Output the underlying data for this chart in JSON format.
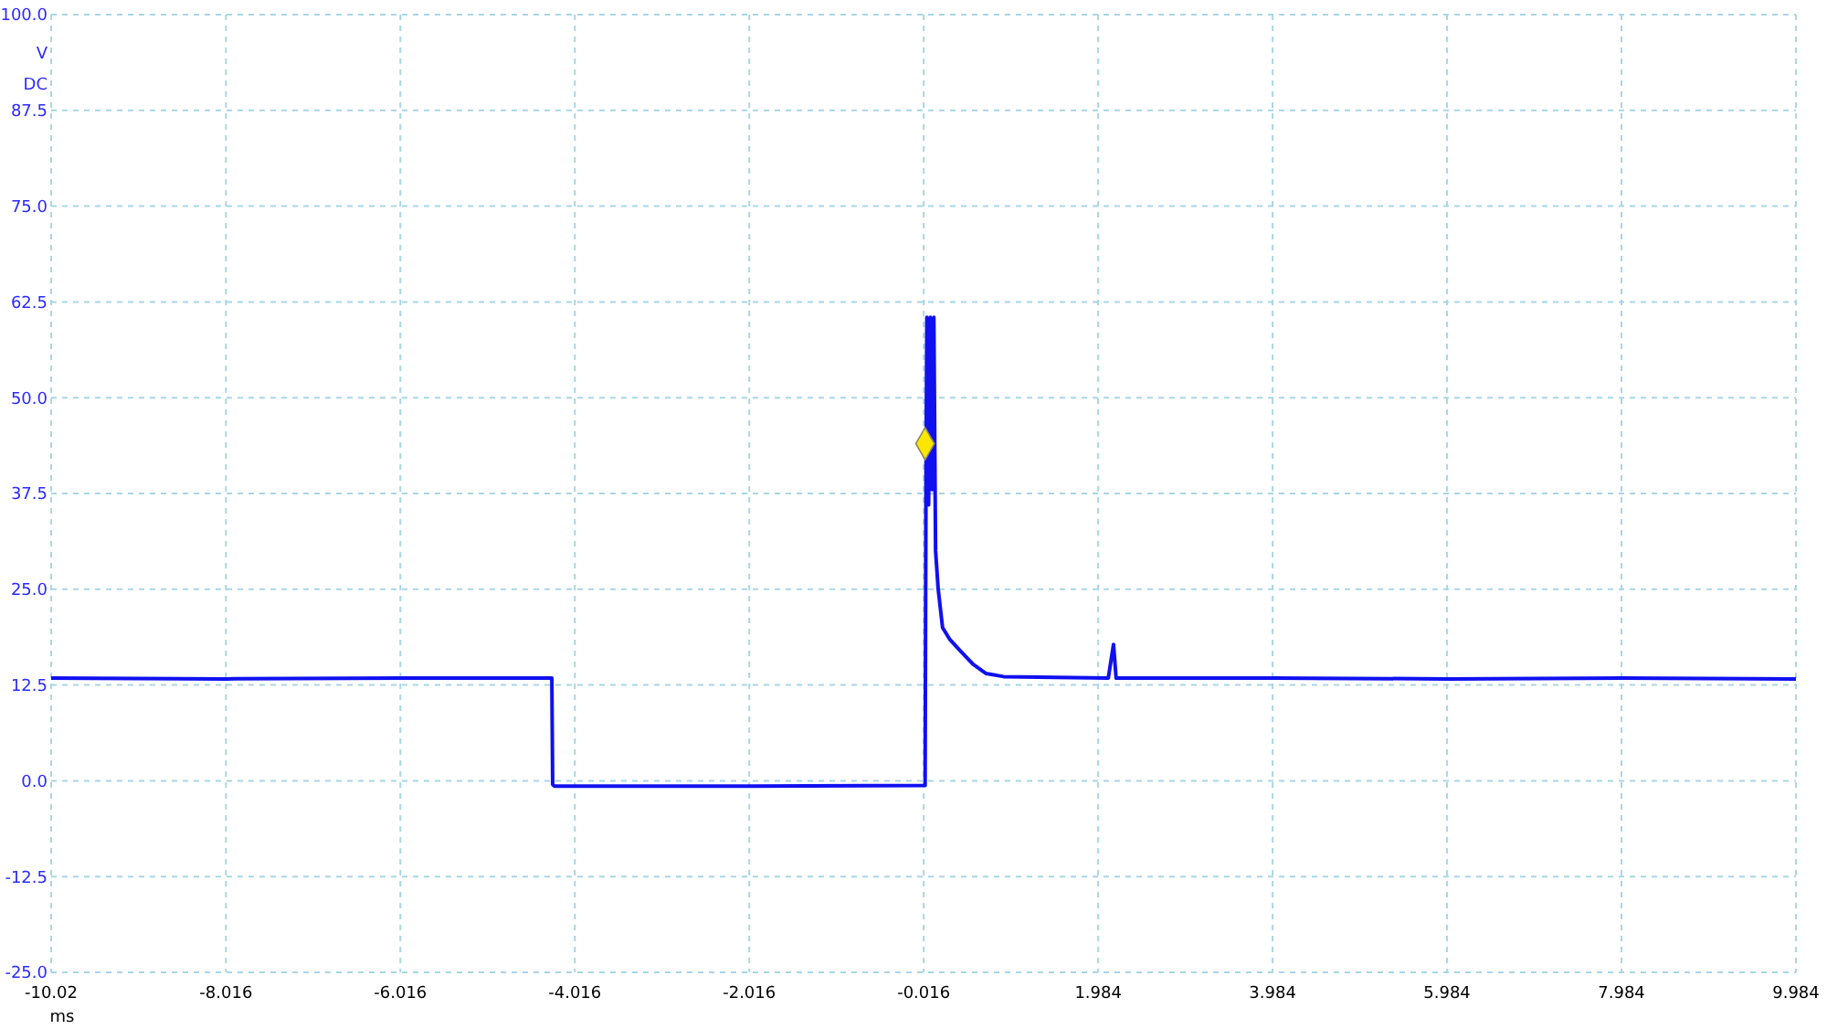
{
  "chart_data": {
    "type": "line",
    "xlabel": "ms",
    "ylabel": "V DC",
    "xlim": [
      -10.02,
      9.984
    ],
    "ylim": [
      -25,
      100
    ],
    "xticks": [
      -10.02,
      -8.016,
      -6.016,
      -4.016,
      -2.016,
      -0.016,
      1.984,
      3.984,
      5.984,
      7.984,
      9.984
    ],
    "yticks": [
      {
        "value": -25,
        "label": "-25.0"
      },
      {
        "value": -12.5,
        "label": "-12.5"
      },
      {
        "value": 0,
        "label": "0.0"
      },
      {
        "value": 12.5,
        "label": "12.5"
      },
      {
        "value": 25,
        "label": "25.0"
      },
      {
        "value": 37.5,
        "label": "37.5"
      },
      {
        "value": 50,
        "label": "50.0"
      },
      {
        "value": 62.5,
        "label": "62.5"
      },
      {
        "value": 75,
        "label": "75.0"
      },
      {
        "value": 87.5,
        "label": "87.5"
      },
      {
        "value": 100,
        "label": "100.0"
      }
    ],
    "grid": true,
    "line_style": "solid",
    "series": [
      {
        "color": "#1010f0",
        "x": [
          -10.02,
          -8,
          -6,
          -4.3,
          -4.28,
          -4.27,
          -4.25,
          -2,
          -0.02,
          0,
          0.01,
          0.02,
          0.04,
          0.06,
          0.08,
          0.1,
          0.12,
          0.15,
          0.2,
          0.28,
          0.4,
          0.55,
          0.7,
          0.9,
          2.1,
          2.16,
          2.19,
          4,
          6,
          8,
          9.984
        ],
        "values": [
          13.4,
          13.3,
          13.4,
          13.4,
          13.4,
          -0.5,
          -0.7,
          -0.7,
          -0.6,
          -0.6,
          40,
          60.5,
          36,
          60.5,
          38,
          60.5,
          30,
          25,
          20,
          18.5,
          17,
          15.2,
          14,
          13.6,
          13.4,
          17.8,
          13.4,
          13.4,
          13.3,
          13.4,
          13.3
        ]
      },
      {
        "type": "scatter",
        "color": "#ffe600",
        "marker": "diamond",
        "x": [
          0
        ],
        "values": [
          44
        ]
      }
    ]
  }
}
